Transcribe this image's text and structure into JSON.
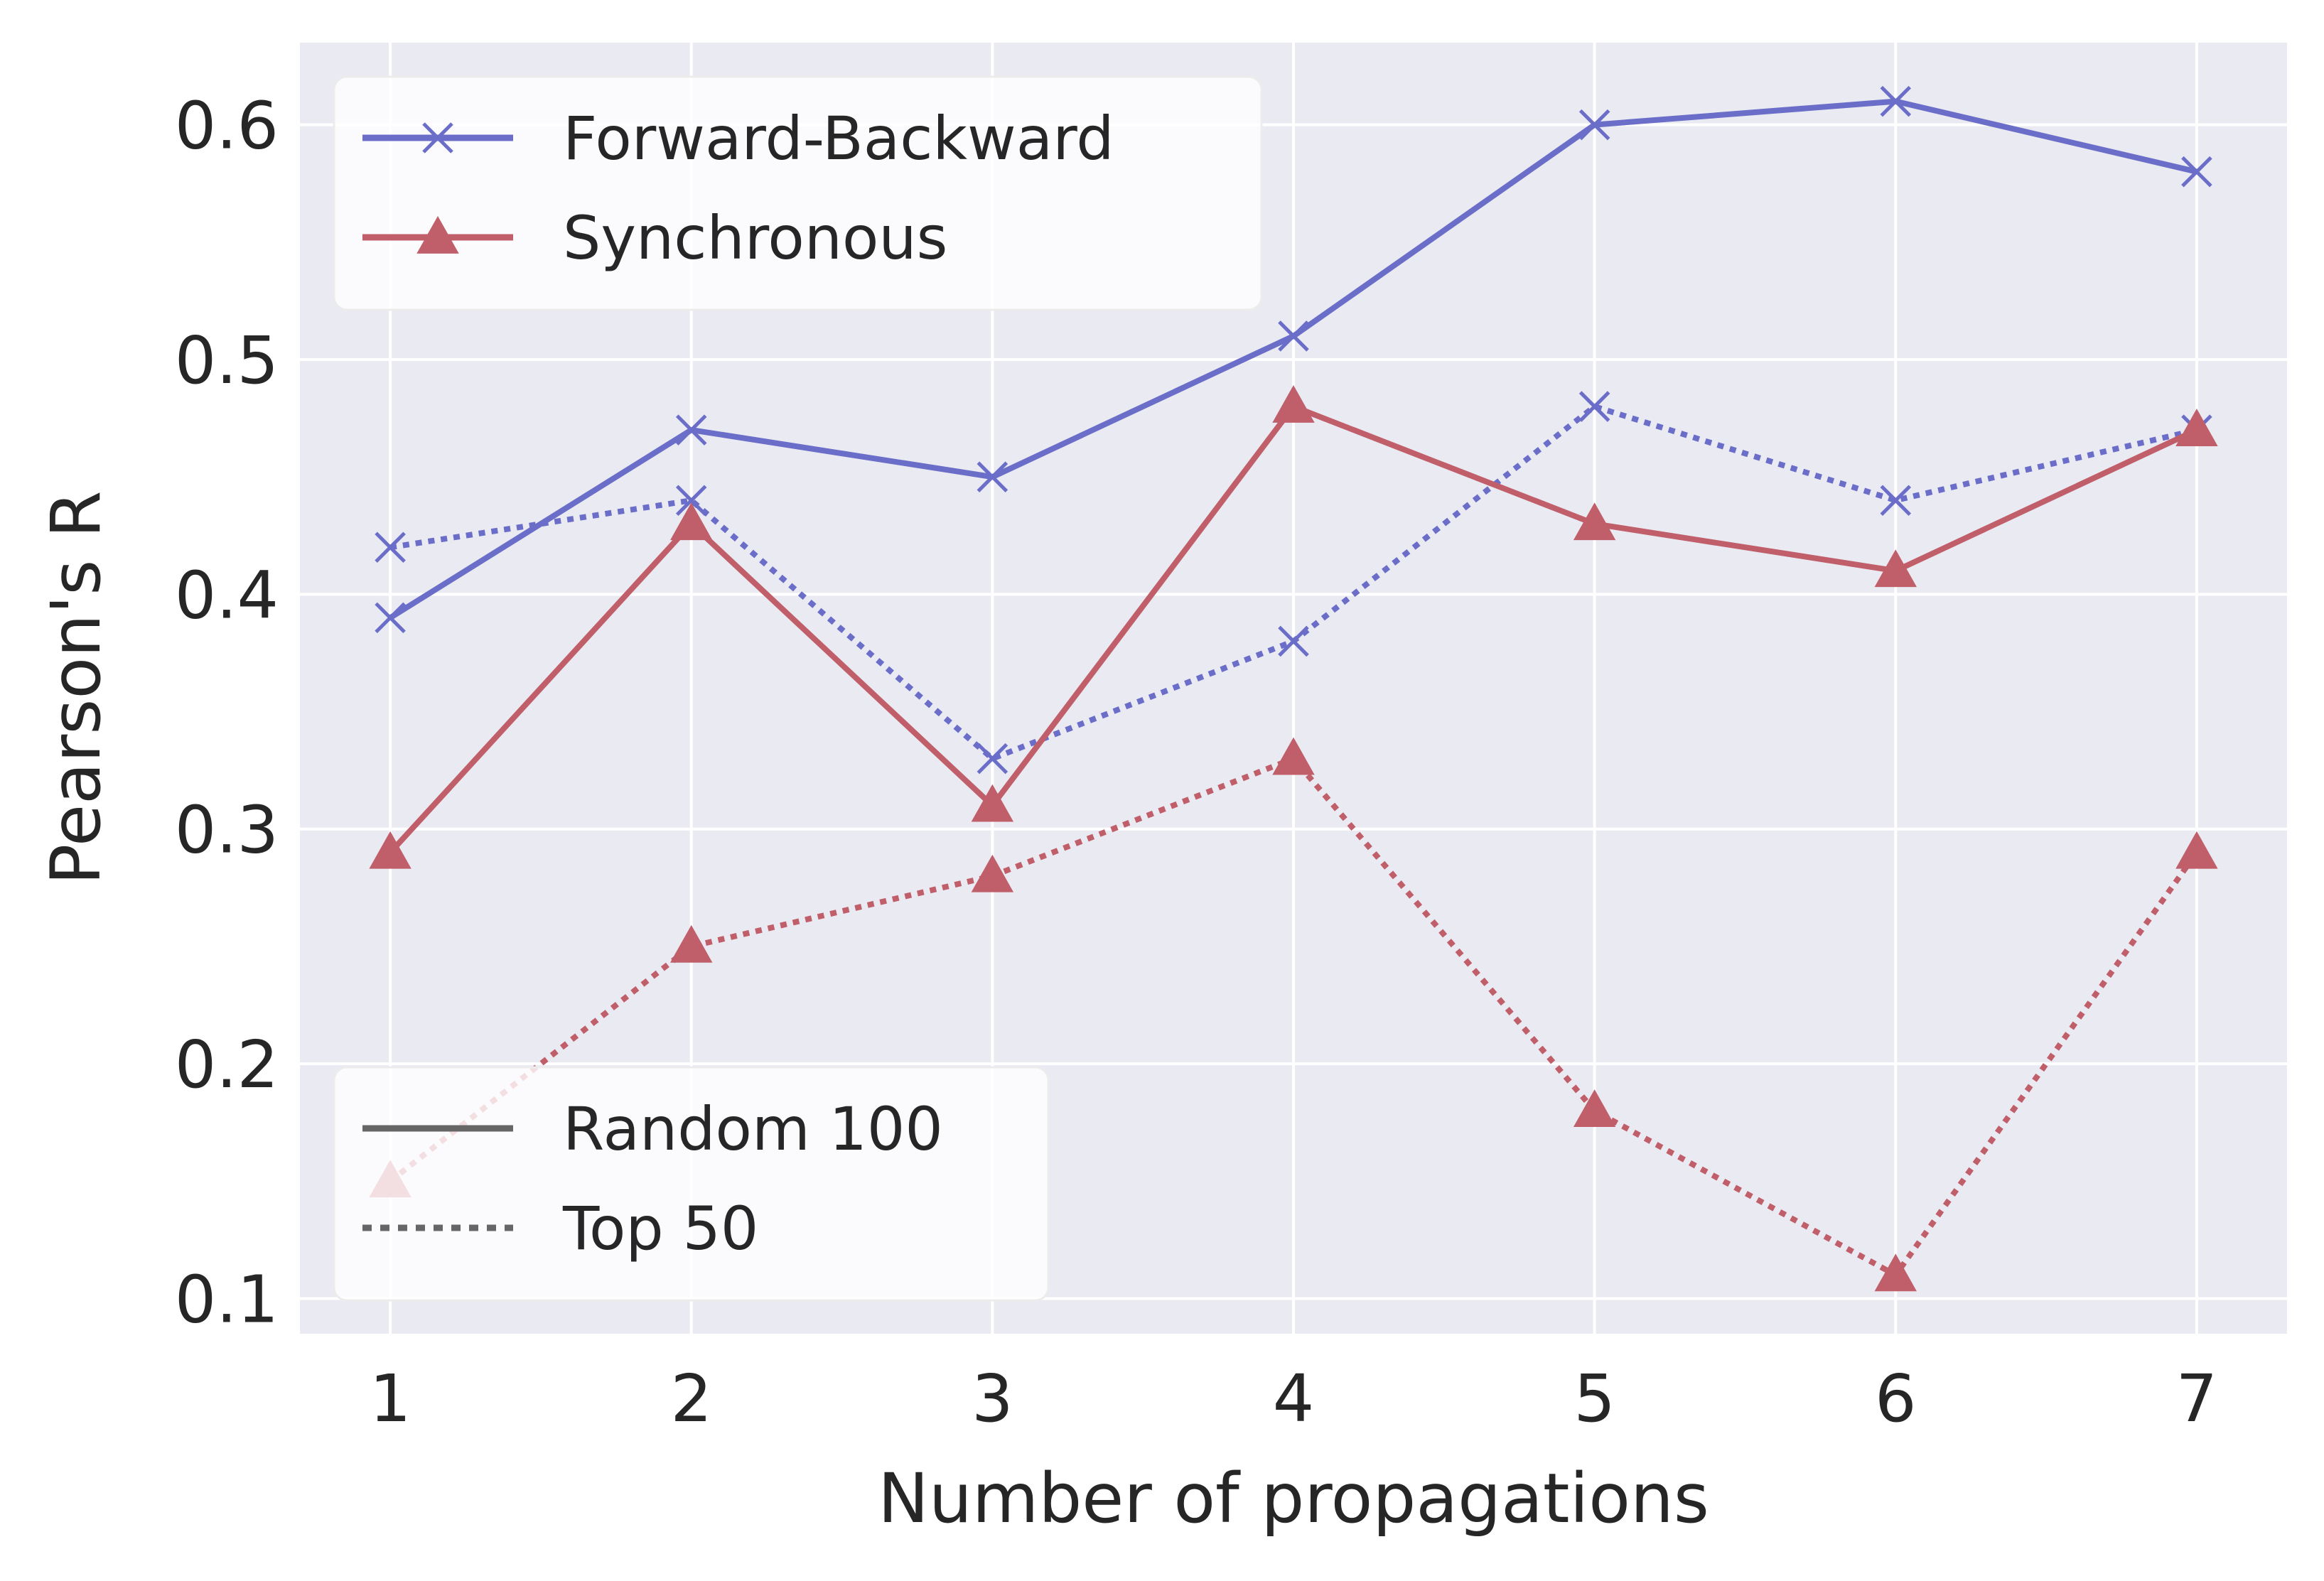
{
  "chart_data": {
    "type": "line",
    "title": "",
    "xlabel": "Number of propagations",
    "ylabel": "Pearson's R",
    "x": [
      1,
      2,
      3,
      4,
      5,
      6,
      7
    ],
    "xlim": [
      0.7,
      7.3
    ],
    "ylim": [
      0.085,
      0.635
    ],
    "xticks": [
      "1",
      "2",
      "3",
      "4",
      "5",
      "6",
      "7"
    ],
    "yticks": [
      "0.1",
      "0.2",
      "0.3",
      "0.4",
      "0.5",
      "0.6"
    ],
    "ytick_values": [
      0.1,
      0.2,
      0.3,
      0.4,
      0.5,
      0.6
    ],
    "grid": true,
    "series": [
      {
        "method": "Forward-Backward",
        "subset": "Random 100",
        "color": "#6b6ec9",
        "marker": "x",
        "linestyle": "solid",
        "values": [
          0.39,
          0.47,
          0.45,
          0.51,
          0.6,
          0.61,
          0.58
        ]
      },
      {
        "method": "Forward-Backward",
        "subset": "Top 50",
        "color": "#6b6ec9",
        "marker": "x",
        "linestyle": "dotted",
        "values": [
          0.42,
          0.44,
          0.33,
          0.38,
          0.48,
          0.44,
          0.47
        ]
      },
      {
        "method": "Synchronous",
        "subset": "Random 100",
        "color": "#c05f6a",
        "marker": "triangle",
        "linestyle": "solid",
        "values": [
          0.29,
          0.43,
          0.31,
          0.48,
          0.43,
          0.41,
          0.47
        ]
      },
      {
        "method": "Synchronous",
        "subset": "Top 50",
        "color": "#c05f6a",
        "marker": "triangle",
        "linestyle": "dotted",
        "values": [
          0.15,
          0.25,
          0.28,
          0.33,
          0.18,
          0.11,
          0.29
        ]
      }
    ],
    "legends": [
      {
        "placement": "top-left",
        "entries": [
          {
            "label": "Forward-Backward",
            "color": "#6b6ec9",
            "marker": "x",
            "linestyle": "solid"
          },
          {
            "label": "Synchronous",
            "color": "#c05f6a",
            "marker": "triangle",
            "linestyle": "solid"
          }
        ]
      },
      {
        "placement": "lower-left",
        "entries": [
          {
            "label": "Random 100",
            "color": "#666666",
            "marker": "none",
            "linestyle": "solid"
          },
          {
            "label": "Top 50",
            "color": "#666666",
            "marker": "none",
            "linestyle": "dotted"
          }
        ]
      }
    ],
    "plot_background": "#eaeaf2",
    "grid_color": "#ffffff"
  }
}
